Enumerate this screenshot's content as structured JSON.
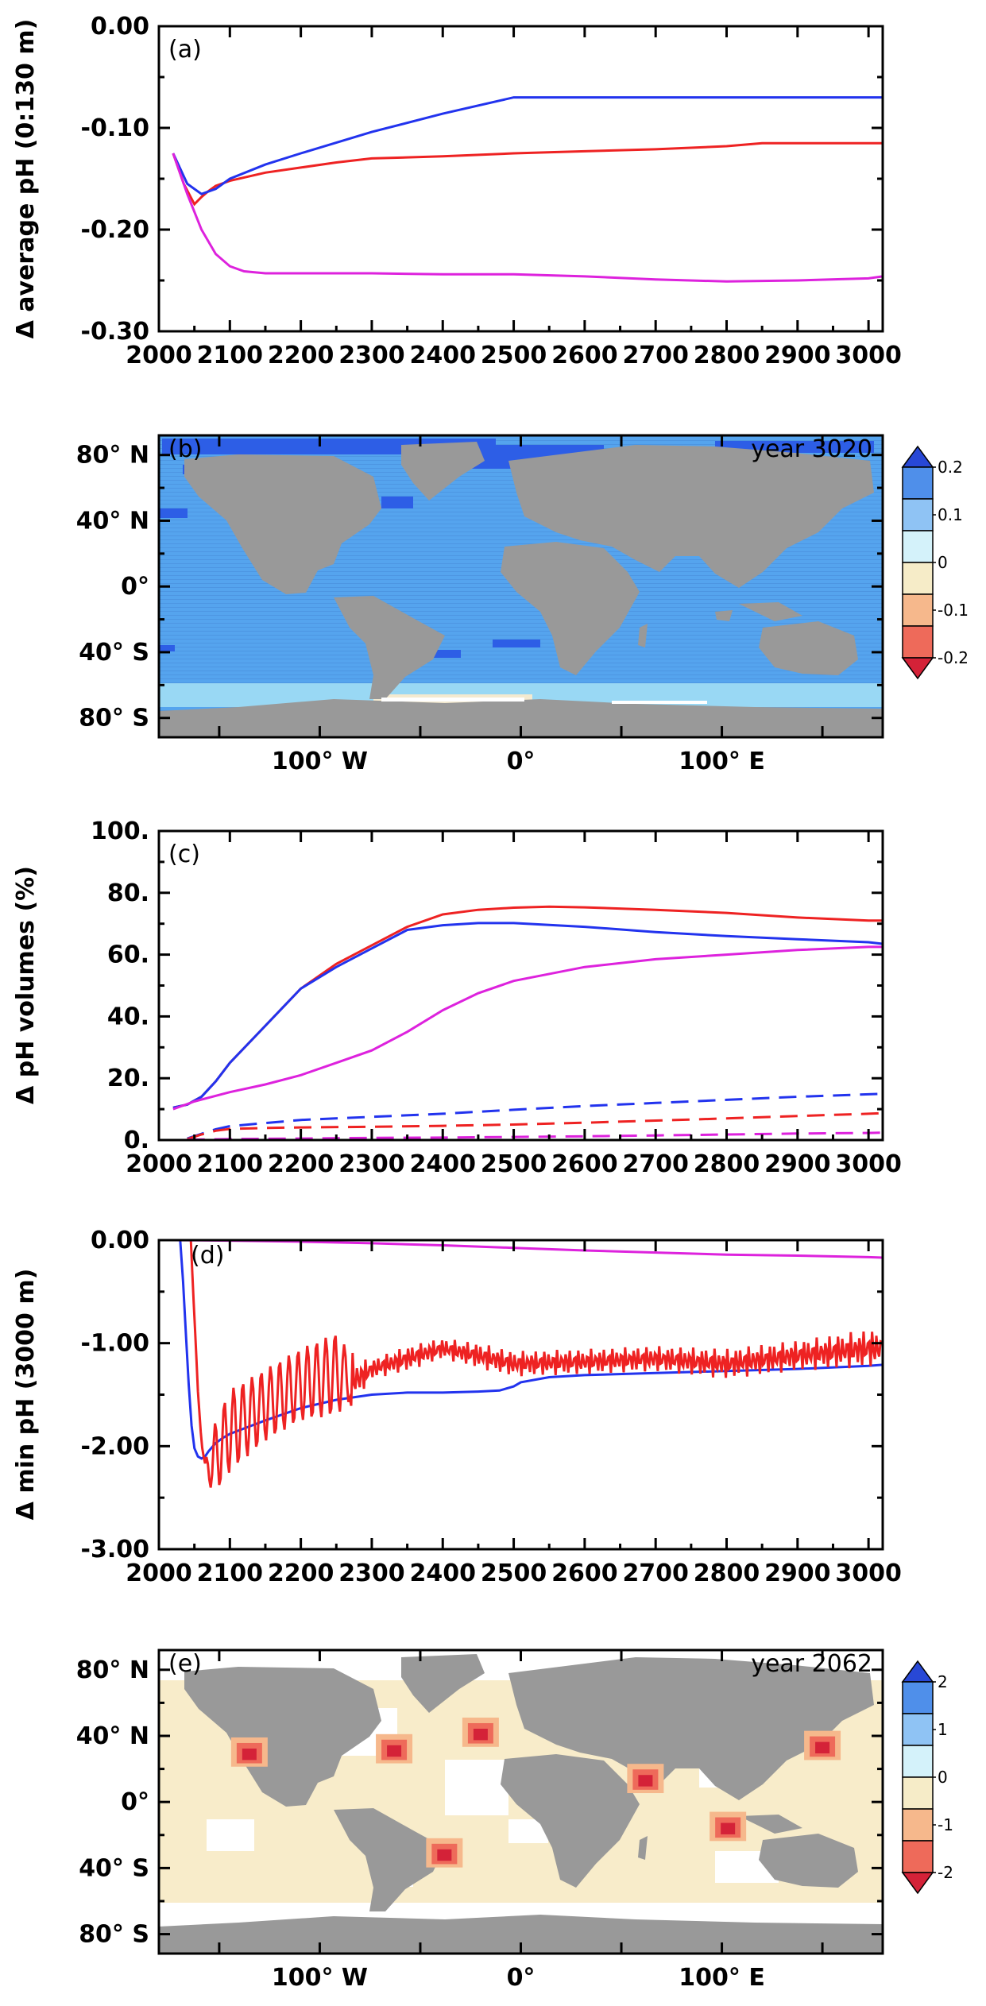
{
  "colors": {
    "red": "#ee2222",
    "blue": "#2233ee",
    "magenta": "#dd22dd",
    "land": "#999999",
    "ocean_b": "#55a4ee",
    "ocean_b_deep": "#2d5ee6",
    "ocean_b_light": "#99d8f4",
    "ocean_b_pale": "#f4ead0",
    "ocean_e": "#f8ecca",
    "ice_e": "#ffffff"
  },
  "chart_data": [
    {
      "id": "a",
      "type": "line",
      "panel_label": "(a)",
      "ylabel": "Δ average pH (0:130 m)",
      "xlim": [
        2000,
        3020
      ],
      "ylim": [
        -0.3,
        0.0
      ],
      "x_ticks": [
        "2000",
        "2100",
        "2200",
        "2300",
        "2400",
        "2500",
        "2600",
        "2700",
        "2800",
        "2900",
        "3000"
      ],
      "y_ticks": [
        "0.00",
        "-0.10",
        "-0.20",
        "-0.30"
      ],
      "series": [
        {
          "color": "red",
          "x": [
            2020,
            2035,
            2050,
            2060,
            2070,
            2080,
            2100,
            2150,
            2200,
            2250,
            2300,
            2400,
            2500,
            2600,
            2700,
            2800,
            2850,
            2900,
            3000,
            3020
          ],
          "y": [
            -0.125,
            -0.155,
            -0.175,
            -0.168,
            -0.162,
            -0.157,
            -0.152,
            -0.144,
            -0.139,
            -0.134,
            -0.13,
            -0.128,
            -0.125,
            -0.123,
            -0.121,
            -0.118,
            -0.115,
            -0.115,
            -0.115,
            -0.115
          ]
        },
        {
          "color": "blue",
          "x": [
            2020,
            2040,
            2060,
            2080,
            2100,
            2150,
            2200,
            2300,
            2400,
            2500,
            2600,
            2700,
            2800,
            2900,
            3000,
            3020
          ],
          "y": [
            -0.125,
            -0.155,
            -0.165,
            -0.16,
            -0.15,
            -0.136,
            -0.125,
            -0.104,
            -0.086,
            -0.07,
            -0.07,
            -0.07,
            -0.07,
            -0.07,
            -0.07,
            -0.07
          ]
        },
        {
          "color": "magenta",
          "x": [
            2020,
            2040,
            2060,
            2080,
            2100,
            2120,
            2150,
            2200,
            2300,
            2400,
            2500,
            2600,
            2700,
            2800,
            2900,
            3000,
            3020
          ],
          "y": [
            -0.125,
            -0.165,
            -0.2,
            -0.224,
            -0.236,
            -0.241,
            -0.243,
            -0.243,
            -0.243,
            -0.244,
            -0.244,
            -0.246,
            -0.249,
            -0.251,
            -0.25,
            -0.248,
            -0.246
          ]
        }
      ]
    },
    {
      "id": "c",
      "type": "line",
      "panel_label": "(c)",
      "ylabel": "Δ pH volumes (%)",
      "xlim": [
        2000,
        3020
      ],
      "ylim": [
        0,
        100
      ],
      "x_ticks": [
        "2000",
        "2100",
        "2200",
        "2300",
        "2400",
        "2500",
        "2600",
        "2700",
        "2800",
        "2900",
        "3000"
      ],
      "y_ticks": [
        "100.",
        "80.",
        "60.",
        "40.",
        "20.",
        "0."
      ],
      "series": [
        {
          "color": "red",
          "dash": false,
          "x": [
            2020,
            2040,
            2060,
            2080,
            2100,
            2150,
            2200,
            2250,
            2300,
            2350,
            2400,
            2450,
            2500,
            2550,
            2600,
            2700,
            2800,
            2900,
            3000,
            3020
          ],
          "y": [
            10.5,
            11.5,
            14,
            19,
            25,
            37,
            49,
            57,
            63,
            69,
            73,
            74.5,
            75.2,
            75.5,
            75.3,
            74.5,
            73.5,
            72,
            71,
            71
          ]
        },
        {
          "color": "blue",
          "dash": false,
          "x": [
            2020,
            2040,
            2060,
            2080,
            2100,
            2150,
            2200,
            2250,
            2300,
            2350,
            2400,
            2450,
            2500,
            2600,
            2700,
            2800,
            2900,
            3000,
            3020
          ],
          "y": [
            10.5,
            11.5,
            14,
            19,
            25,
            37,
            49,
            56,
            62,
            68,
            69.5,
            70.2,
            70.2,
            69,
            67.3,
            66,
            65,
            64,
            63.5
          ]
        },
        {
          "color": "magenta",
          "dash": false,
          "x": [
            2020,
            2050,
            2100,
            2150,
            2200,
            2250,
            2300,
            2350,
            2400,
            2450,
            2500,
            2600,
            2700,
            2800,
            2900,
            3000,
            3020
          ],
          "y": [
            10,
            12.5,
            15.5,
            18,
            21,
            25,
            29,
            35,
            42,
            47.5,
            51.5,
            56,
            58.5,
            60,
            61.5,
            62.5,
            62.5
          ]
        },
        {
          "color": "blue",
          "dash": true,
          "x": [
            2040,
            2060,
            2080,
            2100,
            2150,
            2200,
            2300,
            2400,
            2500,
            2600,
            2700,
            2800,
            2900,
            3000,
            3020
          ],
          "y": [
            0.5,
            2,
            3.5,
            4.5,
            5.5,
            6.5,
            7.5,
            8.5,
            9.8,
            11,
            12,
            13,
            14,
            14.8,
            15
          ]
        },
        {
          "color": "red",
          "dash": true,
          "x": [
            2040,
            2060,
            2080,
            2100,
            2150,
            2200,
            2300,
            2400,
            2500,
            2600,
            2700,
            2800,
            2900,
            3000,
            3020
          ],
          "y": [
            0.3,
            1.8,
            3,
            3.6,
            3.9,
            4.1,
            4.3,
            4.6,
            5,
            5.6,
            6.3,
            7,
            7.8,
            8.5,
            8.7
          ]
        },
        {
          "color": "magenta",
          "dash": true,
          "x": [
            2040,
            2100,
            2200,
            2300,
            2400,
            2500,
            2600,
            2700,
            2800,
            2900,
            3000,
            3020
          ],
          "y": [
            0.1,
            0.3,
            0.5,
            0.7,
            0.8,
            1.0,
            1.2,
            1.5,
            1.8,
            2.1,
            2.3,
            2.4
          ]
        }
      ]
    },
    {
      "id": "d",
      "type": "line",
      "panel_label": "(d)",
      "ylabel": "Δ min pH (3000 m)",
      "xlim": [
        2000,
        3020
      ],
      "ylim": [
        -3.0,
        0.0
      ],
      "x_ticks": [
        "2000",
        "2100",
        "2200",
        "2300",
        "2400",
        "2500",
        "2600",
        "2700",
        "2800",
        "2900",
        "3000"
      ],
      "y_ticks": [
        "0.00",
        "-1.00",
        "-2.00",
        "-3.00"
      ],
      "series": [
        {
          "color": "blue",
          "x": [
            2030,
            2034,
            2038,
            2042,
            2046,
            2050,
            2055,
            2060,
            2065,
            2070,
            2080,
            2090,
            2100,
            2150,
            2200,
            2250,
            2300,
            2350,
            2400,
            2450,
            2480,
            2500,
            2510,
            2550,
            2600,
            2700,
            2800,
            2900,
            3000,
            3020
          ],
          "y": [
            0.0,
            -0.4,
            -0.9,
            -1.4,
            -1.8,
            -2.02,
            -2.1,
            -2.12,
            -2.1,
            -2.05,
            -1.97,
            -1.92,
            -1.88,
            -1.75,
            -1.63,
            -1.55,
            -1.5,
            -1.48,
            -1.48,
            -1.47,
            -1.46,
            -1.42,
            -1.38,
            -1.33,
            -1.31,
            -1.29,
            -1.27,
            -1.25,
            -1.22,
            -1.21
          ]
        },
        {
          "color": "red",
          "oscillating": true,
          "x": [
            2045,
            2055,
            2065,
            2080,
            2100,
            2150,
            2200,
            2250,
            2280,
            2300,
            2350,
            2400,
            2450,
            2500,
            2600,
            2700,
            2800,
            2900,
            3000,
            3020
          ],
          "y": [
            0.0,
            -1.5,
            -2.25,
            -2.1,
            -1.85,
            -1.6,
            -1.4,
            -1.3,
            -1.35,
            -1.25,
            -1.15,
            -1.05,
            -1.12,
            -1.2,
            -1.18,
            -1.15,
            -1.2,
            -1.12,
            -1.05,
            -1.05
          ],
          "amp": [
            0,
            0.05,
            0.1,
            0.35,
            0.4,
            0.35,
            0.35,
            0.4,
            0.15,
            0.08,
            0.1,
            0.08,
            0.1,
            0.1,
            0.1,
            0.1,
            0.12,
            0.12,
            0.15,
            0.15
          ]
        },
        {
          "color": "magenta",
          "x": [
            2020,
            2100,
            2200,
            2300,
            2400,
            2500,
            2600,
            2700,
            2800,
            2900,
            3000,
            3020
          ],
          "y": [
            0.0,
            -0.005,
            -0.015,
            -0.03,
            -0.05,
            -0.075,
            -0.1,
            -0.12,
            -0.14,
            -0.15,
            -0.165,
            -0.17
          ]
        }
      ]
    },
    {
      "id": "b",
      "type": "heatmap",
      "panel_label": "(b)",
      "annotation": "year 3020",
      "lat_ticks": [
        "80° N",
        "40° N",
        "0°",
        "40° S",
        "80° S"
      ],
      "lon_ticks": [
        "100° W",
        "0°",
        "100° E"
      ],
      "colorbar_labels": [
        "0.2",
        "0.1",
        "0",
        "-0.1",
        "-0.2"
      ],
      "colorbar_colors": [
        "#2848d6",
        "#4f8fea",
        "#8fc3f4",
        "#d4f2fa",
        "#f6ecc8",
        "#f6b88c",
        "#ee6a5a",
        "#d42238"
      ],
      "field_description_values": {
        "dominant_level": 0.1,
        "high_latitude_north": 0.2,
        "southern_ocean_edge": 0.05
      }
    },
    {
      "id": "e",
      "type": "heatmap",
      "panel_label": "(e)",
      "annotation": "year 2062",
      "lat_ticks": [
        "80° N",
        "40° N",
        "0°",
        "40° S",
        "80° S"
      ],
      "lon_ticks": [
        "100° W",
        "0°",
        "100° E"
      ],
      "colorbar_labels": [
        "2",
        "1",
        "0",
        "-1",
        "-2"
      ],
      "colorbar_colors": [
        "#2848d6",
        "#4f8fea",
        "#8fc3f4",
        "#d4f2fa",
        "#f6ecc8",
        "#f6b88c",
        "#ee6a5a",
        "#d42238"
      ],
      "hotspots": [
        {
          "lon": -135,
          "lat": 28,
          "value": -2
        },
        {
          "lon": -63,
          "lat": 30,
          "value": -2
        },
        {
          "lon": -20,
          "lat": 40,
          "value": -2
        },
        {
          "lon": -38,
          "lat": -33,
          "value": -2
        },
        {
          "lon": 62,
          "lat": 12,
          "value": -2
        },
        {
          "lon": 103,
          "lat": -17,
          "value": -2
        },
        {
          "lon": 150,
          "lat": 32,
          "value": -2
        }
      ]
    }
  ]
}
